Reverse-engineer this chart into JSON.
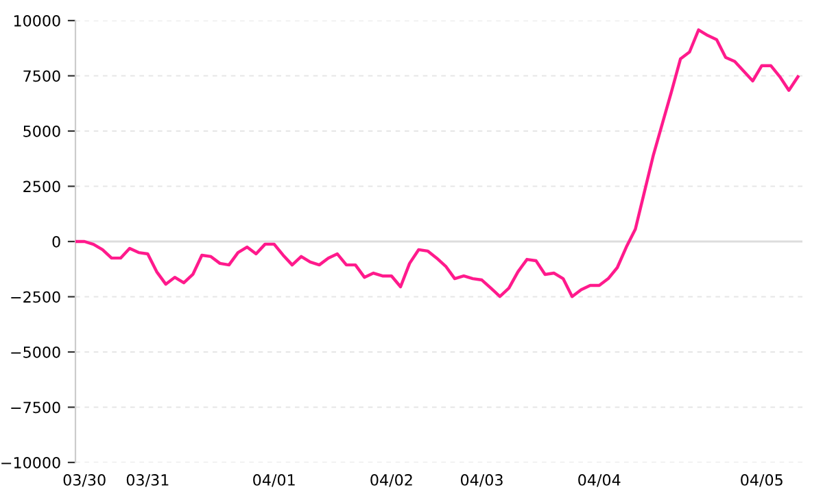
{
  "chart_data": {
    "type": "line",
    "categories": [
      null,
      "03/30",
      null,
      null,
      null,
      null,
      null,
      null,
      "03/31",
      null,
      null,
      null,
      null,
      null,
      null,
      null,
      null,
      null,
      null,
      null,
      null,
      null,
      "04/01",
      null,
      null,
      null,
      null,
      null,
      null,
      null,
      null,
      null,
      null,
      null,
      null,
      "04/02",
      null,
      null,
      null,
      null,
      null,
      null,
      null,
      null,
      null,
      "04/03",
      null,
      null,
      null,
      null,
      null,
      null,
      null,
      null,
      null,
      null,
      null,
      null,
      "04/04",
      null,
      null,
      null,
      null,
      null,
      null,
      null,
      null,
      null,
      null,
      null,
      null,
      null,
      null,
      null,
      null,
      null,
      "04/05",
      null,
      null,
      null,
      null
    ],
    "series": [
      {
        "color": "#ff1a8c",
        "values": [
          0,
          0,
          -130,
          -370,
          -750,
          -750,
          -310,
          -500,
          -560,
          -1370,
          -1930,
          -1620,
          -1870,
          -1490,
          -620,
          -680,
          -990,
          -1060,
          -500,
          -250,
          -560,
          -120,
          -120,
          -620,
          -1060,
          -680,
          -930,
          -1060,
          -750,
          -560,
          -1060,
          -1060,
          -1620,
          -1430,
          -1560,
          -1560,
          -2050,
          -990,
          -370,
          -430,
          -750,
          -1120,
          -1680,
          -1560,
          -1680,
          -1740,
          -2110,
          -2490,
          -2110,
          -1370,
          -810,
          -870,
          -1490,
          -1430,
          -1680,
          -2490,
          -2180,
          -1990,
          -1990,
          -1680,
          -1180,
          -250,
          560,
          2240,
          3920,
          5350,
          6780,
          8270,
          8580,
          9580,
          9330,
          9140,
          8330,
          8150,
          7710,
          7270,
          7960,
          7960,
          7460,
          6840,
          7460
        ]
      }
    ],
    "ylim": [
      -10000,
      10000
    ],
    "yticks": [
      -10000,
      -7500,
      -5000,
      -2500,
      0,
      2500,
      5000,
      7500,
      10000
    ],
    "grid": "y",
    "ref_lines": [
      {
        "axis": "y",
        "value": 0,
        "color": "#dddddd"
      }
    ],
    "marker": "none",
    "line_style": "solid"
  }
}
